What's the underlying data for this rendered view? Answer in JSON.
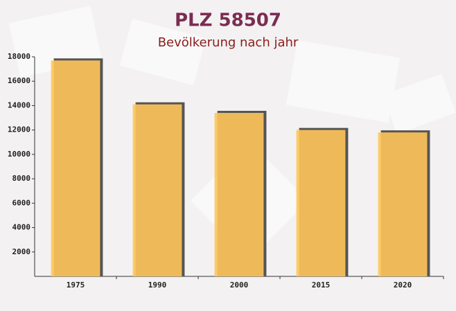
{
  "chart_data": {
    "type": "bar",
    "title": "PLZ 58507",
    "subtitle": "Bevölkerung nach jahr",
    "categories": [
      "1975",
      "1990",
      "2000",
      "2015",
      "2020"
    ],
    "values": [
      17700,
      14100,
      13400,
      12000,
      11800
    ],
    "color": "#ffc55a",
    "ylim": [
      0,
      18000
    ],
    "yticks": [
      2000,
      4000,
      6000,
      8000,
      10000,
      12000,
      14000,
      16000,
      18000
    ]
  }
}
